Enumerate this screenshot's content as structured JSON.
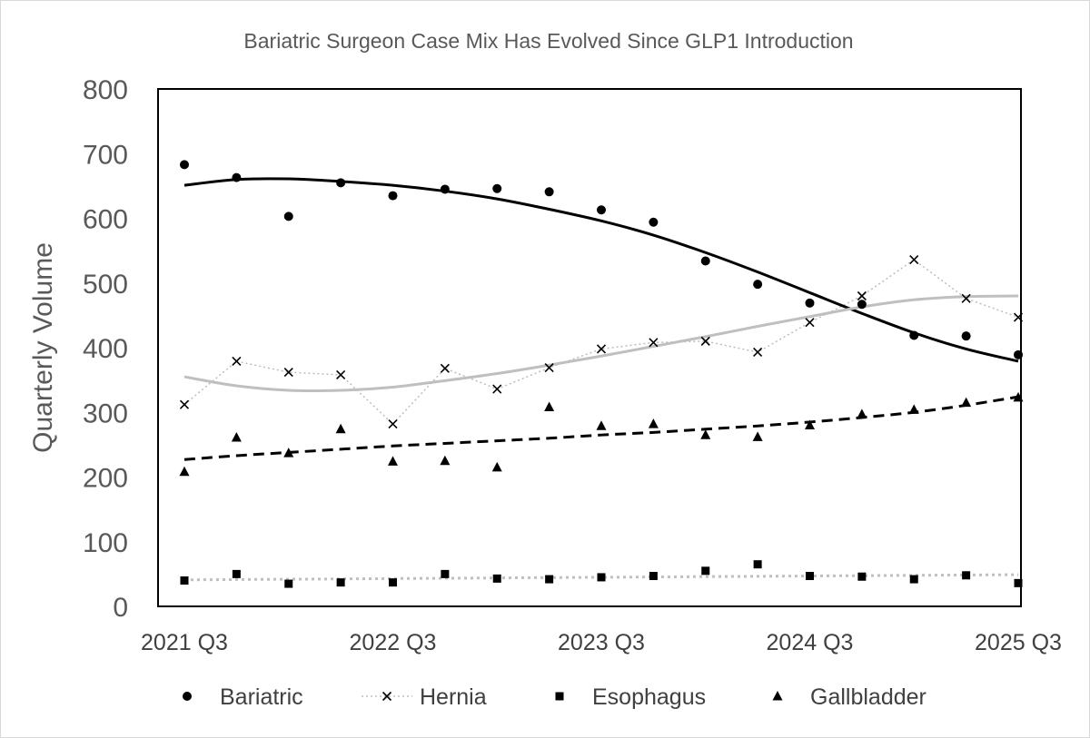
{
  "chart_data": {
    "type": "scatter",
    "title": "Bariatric Surgeon Case Mix Has Evolved Since GLP1 Introduction",
    "xlabel": "",
    "ylabel": "Quarterly Volume",
    "ylim": [
      0,
      800
    ],
    "yticks": [
      "0",
      "100",
      "200",
      "300",
      "400",
      "500",
      "600",
      "700",
      "800"
    ],
    "x": [
      "2021 Q3",
      "2021 Q4",
      "2022 Q1",
      "2022 Q2",
      "2022 Q3",
      "2022 Q4",
      "2023 Q1",
      "2023 Q2",
      "2023 Q3",
      "2023 Q4",
      "2024 Q1",
      "2024 Q2",
      "2024 Q3",
      "2024 Q4",
      "2025 Q1",
      "2025 Q2",
      "2025 Q3"
    ],
    "xticks": [
      "2021 Q3",
      "2022 Q3",
      "2023 Q3",
      "2024 Q3",
      "2025 Q3"
    ],
    "grid": false,
    "legend_position": "bottom",
    "series": [
      {
        "name": "Bariatric",
        "marker": "circle",
        "values": [
          683,
          663,
          603,
          655,
          635,
          645,
          646,
          641,
          613,
          594,
          534,
          498,
          469,
          467,
          419,
          418,
          389
        ],
        "trendline": "polynomial",
        "trend_values": [
          651,
          660,
          661,
          657,
          651,
          642,
          630,
          614,
          596,
          574,
          547,
          517,
          485,
          453,
          423,
          398,
          379
        ],
        "trend_style": "solid-black"
      },
      {
        "name": "Hernia",
        "marker": "x",
        "connector": "dotted",
        "values": [
          312,
          379,
          362,
          358,
          282,
          368,
          336,
          369,
          398,
          408,
          410,
          393,
          439,
          480,
          536,
          476,
          447
        ],
        "trendline": "polynomial",
        "trend_values": [
          355,
          341,
          334,
          334,
          339,
          349,
          360,
          373,
          387,
          402,
          417,
          433,
          448,
          463,
          474,
          479,
          480
        ],
        "trend_style": "solid-gray"
      },
      {
        "name": "Esophagus",
        "marker": "square",
        "values": [
          40,
          50,
          35,
          37,
          37,
          50,
          43,
          42,
          45,
          47,
          55,
          65,
          47,
          46,
          42,
          48,
          36
        ],
        "trendline": "linear",
        "trend_values": [
          41,
          41.5,
          42,
          42.5,
          43,
          43.5,
          44,
          44.5,
          45,
          45.5,
          46,
          46.5,
          47,
          47.5,
          48,
          48.5,
          49
        ],
        "trend_style": "dotted-gray"
      },
      {
        "name": "Gallbladder",
        "marker": "triangle",
        "values": [
          208,
          261,
          237,
          274,
          224,
          225,
          215,
          308,
          279,
          282,
          265,
          262,
          280,
          297,
          304,
          315,
          323
        ],
        "trendline": "polynomial",
        "trend_values": [
          227,
          233,
          238,
          243,
          248,
          252,
          256,
          260,
          265,
          269,
          274,
          279,
          285,
          292,
          300,
          311,
          324
        ],
        "trend_style": "dashed-black"
      }
    ]
  }
}
